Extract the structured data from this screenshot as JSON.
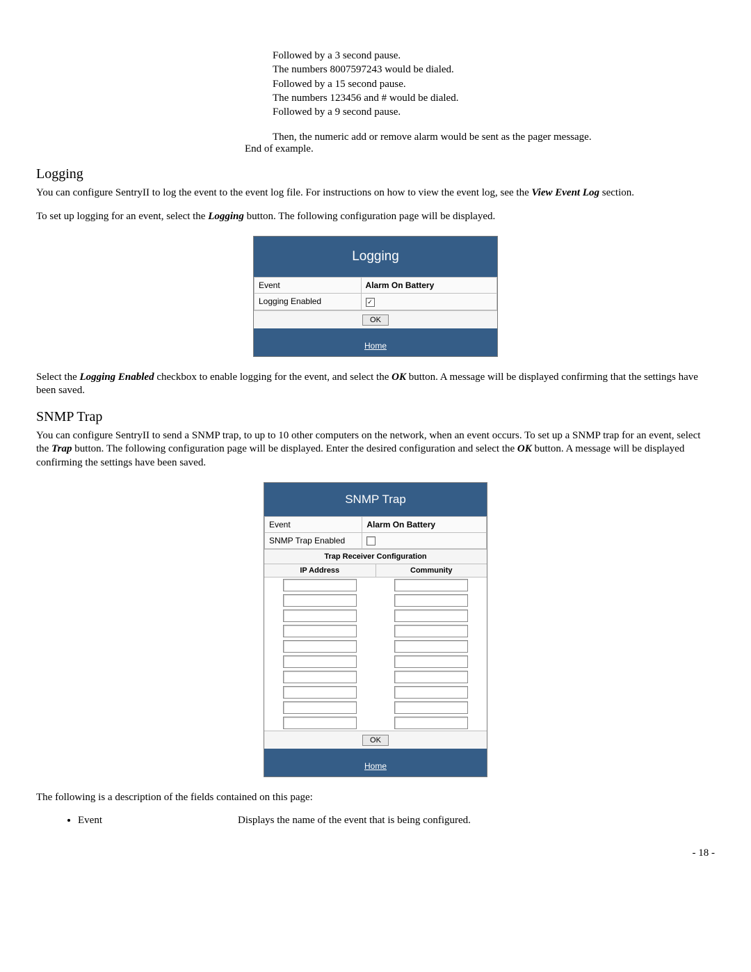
{
  "example": {
    "line1": "Followed by a 3 second pause.",
    "line2": "The numbers 8007597243 would be dialed.",
    "line3": "Followed by a 15 second pause.",
    "line4": "The numbers 123456 and # would be dialed.",
    "line5": "Followed by a 9 second pause.",
    "line6": "Then, the numeric add or remove alarm would be sent as the pager message.",
    "end": "End of example."
  },
  "logging": {
    "heading": "Logging",
    "para1_pre": "You can configure SentryII to log the event to the event log file.  For instructions on how to view the event log, see the ",
    "para1_em": "View Event Log",
    "para1_post": " section.",
    "para2_pre": "To set up logging for an event, select the ",
    "para2_em": "Logging",
    "para2_post": " button.  The following configuration page will be displayed.",
    "panel": {
      "title": "Logging",
      "event_label": "Event",
      "event_value": "Alarm On Battery",
      "logging_enabled_label": "Logging Enabled",
      "logging_enabled_checked": true,
      "ok_label": "OK",
      "home_label": "Home"
    },
    "para3_pre": "Select the ",
    "para3_em1": "Logging Enabled",
    "para3_mid": " checkbox to enable logging for the event, and select the ",
    "para3_em2": "OK",
    "para3_post": " button. A message will be displayed confirming that the settings have been saved."
  },
  "snmp": {
    "heading": "SNMP Trap",
    "para1_pre": "You can configure SentryII to send a SNMP trap, to up to 10 other computers on the network, when an event occurs. To set up a SNMP trap for an event, select the ",
    "para1_em1": "Trap",
    "para1_mid": " button.  The following configuration page will be displayed. Enter the desired configuration and select the ",
    "para1_em2": "OK",
    "para1_post": " button.  A message will be displayed confirming the settings have been saved.",
    "panel": {
      "title": "SNMP Trap",
      "event_label": "Event",
      "event_value": "Alarm On Battery",
      "trap_enabled_label": "SNMP Trap Enabled",
      "trap_enabled_checked": false,
      "receiver_header": "Trap Receiver Configuration",
      "col_ip": "IP Address",
      "col_community": "Community",
      "row_count": 10,
      "ok_label": "OK",
      "home_label": "Home"
    },
    "desc_intro": "The following is a description of the fields contained on this page:",
    "field1_name": "Event",
    "field1_desc": "Displays the name of the event that is being configured."
  },
  "page_number": "- 18 -",
  "colors": {
    "panel_header_bg": "#355d87",
    "panel_border": "#7a7a7a",
    "grid_border": "#bfbfbf"
  }
}
